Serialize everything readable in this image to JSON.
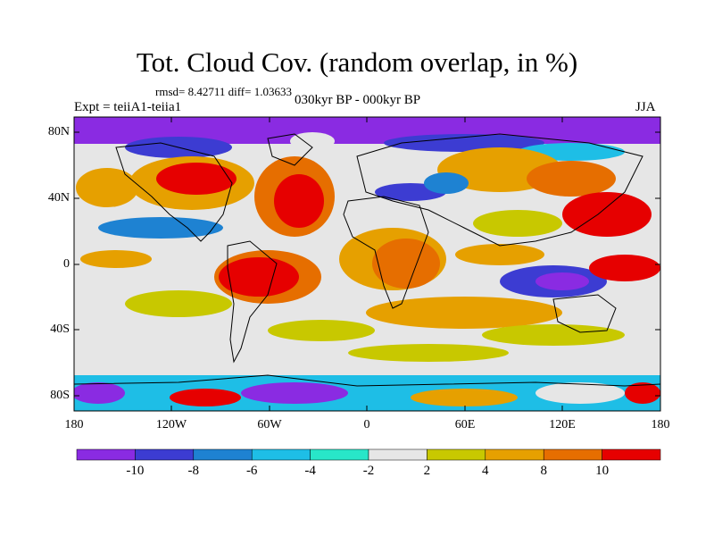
{
  "title": "Tot. Cloud Cov. (random overlap, in %)",
  "stats": "rmsd= 8.42711 diff= 1.03633",
  "experiment": "Expt = teiiA1-teiia1",
  "period": "030kyr BP - 000kyr BP",
  "season": "JJA",
  "lat_labels": [
    "80N",
    "40N",
    "0",
    "40S",
    "80S"
  ],
  "lon_labels": [
    "180",
    "120W",
    "60W",
    "0",
    "60E",
    "120E",
    "180"
  ],
  "colorbar": {
    "labels": [
      "-10",
      "-8",
      "-6",
      "-4",
      "-2",
      "2",
      "4",
      "8",
      "10"
    ],
    "colors": [
      "#8a2be2",
      "#3c3cd2",
      "#1e82d2",
      "#1ebee6",
      "#28e6c8",
      "#e6e6e6",
      "#c8c800",
      "#e6a000",
      "#e66e00",
      "#e60000"
    ]
  }
}
